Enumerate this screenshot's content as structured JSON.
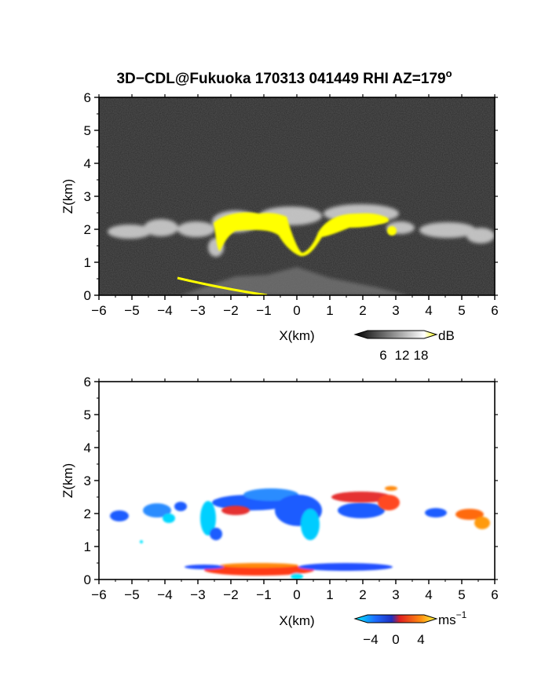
{
  "title": "3D−CDL@Fukuoka 170313 041449 RHI AZ=179",
  "title_superscript": "o",
  "chart_data": [
    {
      "type": "heatmap",
      "panel": "reflectivity",
      "xlabel": "X(km)",
      "ylabel": "Z(km)",
      "xlim": [
        -6,
        6
      ],
      "ylim": [
        0,
        6
      ],
      "xticks": [
        "−6",
        "−5",
        "−4",
        "−3",
        "−2",
        "−1",
        "0",
        "1",
        "2",
        "3",
        "4",
        "5",
        "6"
      ],
      "yticks": [
        "0",
        "1",
        "2",
        "3",
        "4",
        "5",
        "6"
      ],
      "colorbar": {
        "unit": "dB",
        "ticks": [
          "6",
          "12",
          "18"
        ],
        "range": [
          0,
          21
        ]
      },
      "colors": {
        "background": "#2a2a2a",
        "cloud_edge": "#d8d8d8",
        "high": "#ffff00"
      },
      "features": [
        {
          "kind": "cloud_layer",
          "x": [
            -5.7,
            6.0
          ],
          "z_base": 1.6,
          "z_top": 2.5,
          "value_db": 12
        },
        {
          "kind": "strong_echo",
          "x": [
            -2.8,
            3.2
          ],
          "z_base": 1.2,
          "z_top": 2.6,
          "value_db": 20
        },
        {
          "kind": "ground_return",
          "x": [
            -3.6,
            0.4
          ],
          "z_base": 0.0,
          "z_top": 0.5,
          "value_db": 20
        }
      ]
    },
    {
      "type": "heatmap",
      "panel": "doppler_velocity",
      "xlabel": "X(km)",
      "ylabel": "Z(km)",
      "xlim": [
        -6,
        6
      ],
      "ylim": [
        0,
        6
      ],
      "xticks": [
        "−6",
        "−5",
        "−4",
        "−3",
        "−2",
        "−1",
        "0",
        "1",
        "2",
        "3",
        "4",
        "5",
        "6"
      ],
      "yticks": [
        "0",
        "1",
        "2",
        "3",
        "4",
        "5",
        "6"
      ],
      "colorbar": {
        "unit": "ms",
        "unit_superscript": "−1",
        "ticks": [
          "−4",
          "0",
          "4"
        ],
        "range": [
          -5,
          5
        ]
      },
      "colors": {
        "negative": "#1e5cff",
        "negative_strong": "#00e5ff",
        "zero": "#e53030",
        "positive": "#ff9a10"
      },
      "features": [
        {
          "kind": "cloud_layer",
          "x": [
            -5.7,
            6.0
          ],
          "z_base": 1.5,
          "z_top": 2.8,
          "velocity": -2
        },
        {
          "kind": "updraft_band",
          "x": [
            -2.2,
            3.3
          ],
          "z_base": 1.8,
          "z_top": 2.8,
          "velocity": 1
        },
        {
          "kind": "ground_return",
          "x": [
            -3.6,
            4.2
          ],
          "z_base": 0.0,
          "z_top": 0.5,
          "velocity": 0
        }
      ]
    }
  ]
}
